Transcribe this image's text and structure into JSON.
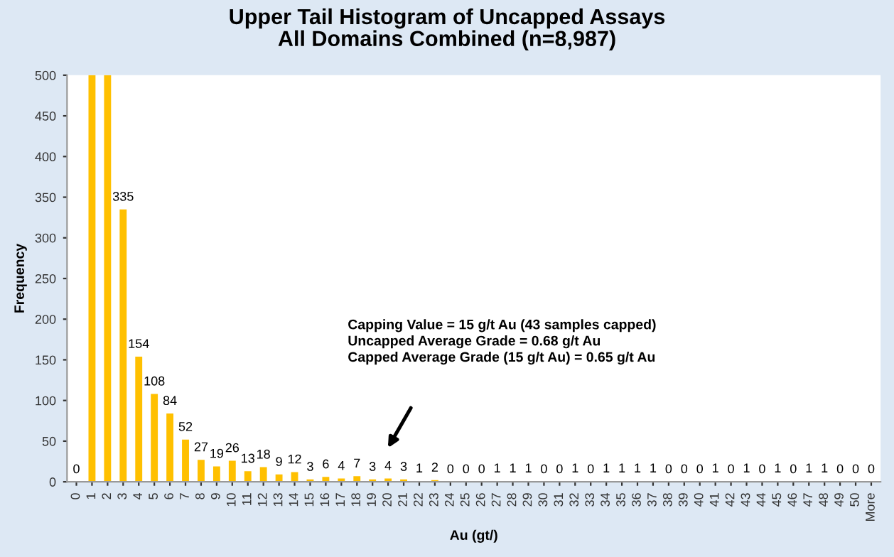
{
  "chart_data": {
    "type": "bar",
    "title": "Upper Tail Histogram of Uncapped Assays\nAll Domains Combined (n=8,987)",
    "xlabel": "Au (gt/)",
    "ylabel": "Frequency",
    "categories": [
      "0",
      "1",
      "2",
      "3",
      "4",
      "5",
      "6",
      "7",
      "8",
      "9",
      "10",
      "11",
      "12",
      "13",
      "14",
      "15",
      "16",
      "17",
      "18",
      "19",
      "20",
      "21",
      "22",
      "23",
      "24",
      "25",
      "26",
      "27",
      "28",
      "29",
      "30",
      "31",
      "32",
      "33",
      "34",
      "35",
      "36",
      "37",
      "38",
      "39",
      "40",
      "41",
      "42",
      "43",
      "44",
      "45",
      "46",
      "47",
      "48",
      "49",
      "50",
      "More"
    ],
    "values": [
      0,
      500,
      500,
      335,
      154,
      108,
      84,
      52,
      27,
      19,
      26,
      13,
      18,
      9,
      12,
      3,
      6,
      4,
      7,
      3,
      4,
      3,
      1,
      2,
      0,
      0,
      0,
      1,
      1,
      1,
      0,
      0,
      1,
      0,
      1,
      1,
      1,
      1,
      0,
      0,
      0,
      1,
      0,
      1,
      0,
      1,
      0,
      1,
      1,
      0,
      0,
      0
    ],
    "value_labels": [
      "0",
      null,
      null,
      "335",
      "154",
      "108",
      "84",
      "52",
      "27",
      "19",
      "26",
      "13",
      "18",
      "9",
      "12",
      "3",
      "6",
      "4",
      "7",
      "3",
      "4",
      "3",
      "1",
      "2",
      "0",
      "0",
      "0",
      "1",
      "1",
      "1",
      "0",
      "0",
      "1",
      "0",
      "1",
      "1",
      "1",
      "1",
      "0",
      "0",
      "0",
      "1",
      "0",
      "1",
      "0",
      "1",
      "0",
      "1",
      "1",
      "0",
      "0",
      "0"
    ],
    "color": "#ffc000",
    "ylim": [
      0,
      500
    ],
    "yticks": [
      0,
      50,
      100,
      150,
      200,
      250,
      300,
      350,
      400,
      450,
      500
    ],
    "grid": false,
    "annotations": [
      "Capping Value = 15 g/t Au (43 samples capped)",
      "Uncapped Average Grade = 0.68 g/t Au",
      "Capped Average Grade (15 g/t Au) = 0.65 g/t Au"
    ]
  }
}
